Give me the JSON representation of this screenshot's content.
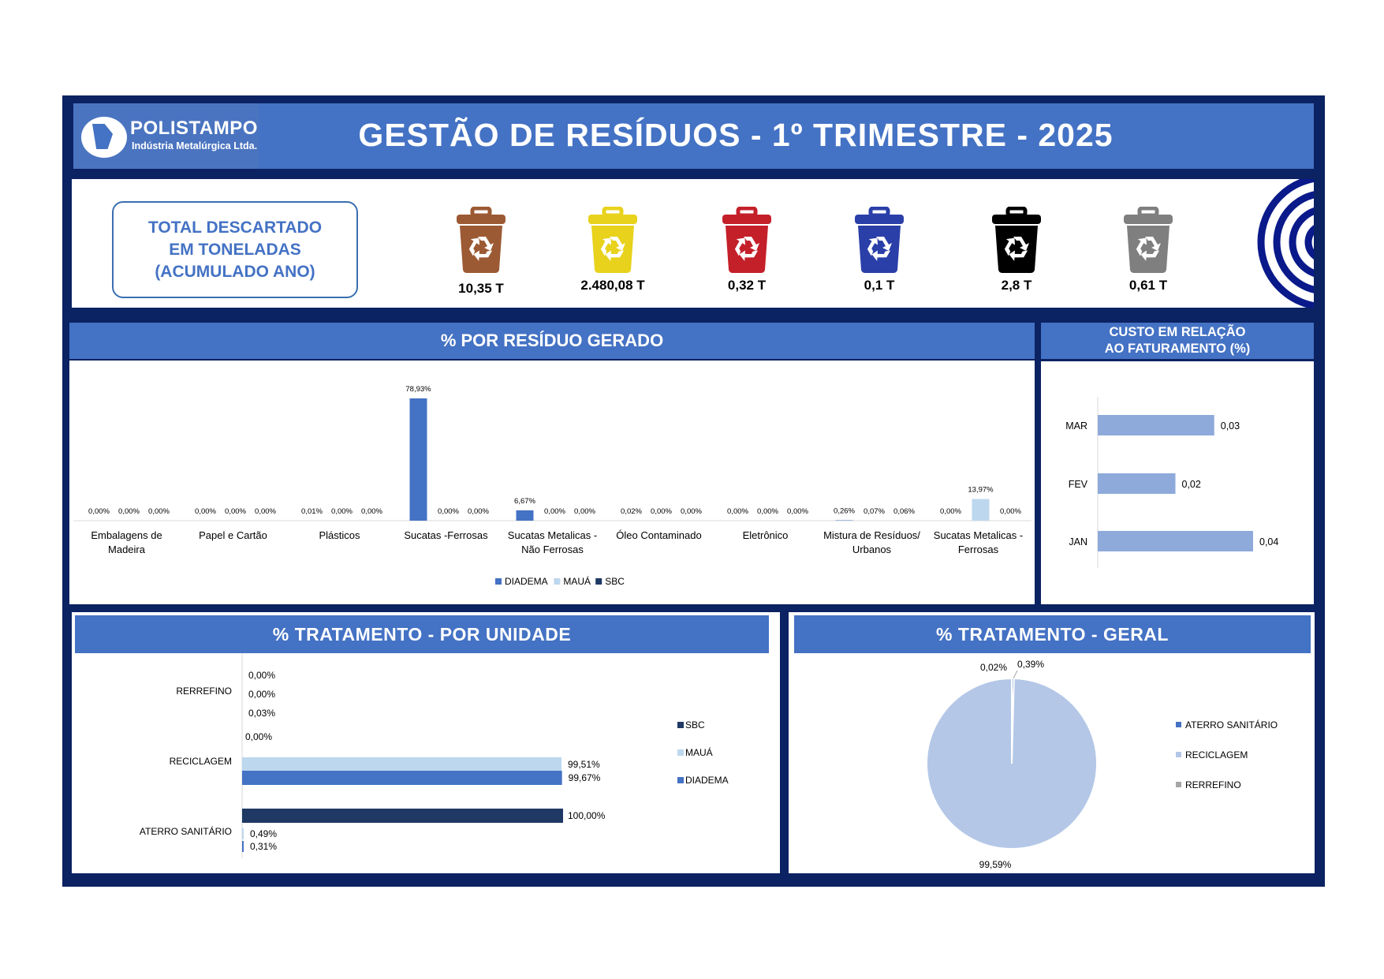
{
  "header": {
    "logo_name": "POLISTAMPO",
    "logo_sub": "Indústria Metalúrgica Ltda.",
    "title": "GESTÃO DE RESÍDUOS - 1º TRIMESTRE - 2025"
  },
  "totals": {
    "label_lines": [
      "TOTAL DESCARTADO",
      "EM TONELADAS",
      "(ACUMULADO ANO)"
    ],
    "bins": [
      {
        "color": "#9c5a34",
        "value": "10,35 T",
        "icon": "recycle-bin-brown-icon"
      },
      {
        "color": "#e8d21c",
        "value": "2.480,08 T",
        "icon": "recycle-bin-yellow-icon"
      },
      {
        "color": "#c4202a",
        "value": "0,32 T",
        "icon": "recycle-bin-red-icon"
      },
      {
        "color": "#2a3fa8",
        "value": "0,1 T",
        "icon": "recycle-bin-blue-icon"
      },
      {
        "color": "#000000",
        "value": "2,8 T",
        "icon": "recycle-bin-black-icon"
      },
      {
        "color": "#7f7f7f",
        "value": "0,61 T",
        "icon": "recycle-bin-gray-icon"
      }
    ]
  },
  "residuo_title": "% POR RESÍDUO GERADO",
  "custo_title_lines": [
    "CUSTO EM RELAÇÃO",
    "AO FATURAMENTO (%)"
  ],
  "unidade_title": "% TRATAMENTO - POR UNIDADE",
  "geral_title": "% TRATAMENTO - GERAL",
  "colors": {
    "diadema": "#4472c4",
    "maua": "#bdd7ee",
    "sbc": "#1f3864",
    "hbar": "#8eaadb",
    "pie_main": "#b4c7e7"
  },
  "chart_data": [
    {
      "type": "bar",
      "title": "% POR RESÍDUO GERADO",
      "categories": [
        "Embalagens de Madeira",
        "Papel e Cartão",
        "Plásticos",
        "Sucatas -Ferrosas",
        "Sucatas Metalicas - Não Ferrosas",
        "Óleo Contaminado",
        "Eletrônico",
        "Mistura de Resíduos/ Urbanos",
        "Sucatas Metalicas - Ferrosas"
      ],
      "category_lines": [
        [
          "Embalagens de",
          "Madeira"
        ],
        [
          "Papel e Cartão"
        ],
        [
          "Plásticos"
        ],
        [
          "Sucatas -Ferrosas"
        ],
        [
          "Sucatas Metalicas -",
          "Não Ferrosas"
        ],
        [
          "Óleo Contaminado"
        ],
        [
          "Eletrônico"
        ],
        [
          "Mistura de Resíduos/",
          "Urbanos"
        ],
        [
          "Sucatas Metalicas -",
          "Ferrosas"
        ]
      ],
      "series": [
        {
          "name": "DIADEMA",
          "values": [
            0,
            0,
            0.01,
            78.93,
            6.67,
            0.02,
            0,
            0.26,
            0
          ],
          "labels": [
            "0,00%",
            "0,00%",
            "0,01%",
            "78,93%",
            "6,67%",
            "0,02%",
            "0,00%",
            "0,26%",
            "0,00%"
          ]
        },
        {
          "name": "MAUÁ",
          "values": [
            0,
            0,
            0,
            0,
            0,
            0,
            0,
            0.07,
            13.97
          ],
          "labels": [
            "0,00%",
            "0,00%",
            "0,00%",
            "0,00%",
            "0,00%",
            "0,00%",
            "0,00%",
            "0,07%",
            "13,97%"
          ]
        },
        {
          "name": "SBC",
          "values": [
            0,
            0,
            0,
            0,
            0,
            0,
            0,
            0.06,
            0
          ],
          "labels": [
            "0,00%",
            "0,00%",
            "0,00%",
            "0,00%",
            "0,00%",
            "0,00%",
            "0,00%",
            "0,06%",
            "0,00%"
          ]
        }
      ],
      "legend": "bottom"
    },
    {
      "type": "bar",
      "orientation": "horizontal",
      "title": "CUSTO EM RELAÇÃO AO FATURAMENTO (%)",
      "categories": [
        "MAR",
        "FEV",
        "JAN"
      ],
      "values": [
        0.03,
        0.02,
        0.04
      ],
      "labels": [
        "0,03",
        "0,02",
        "0,04"
      ]
    },
    {
      "type": "bar",
      "orientation": "horizontal",
      "title": "% TRATAMENTO - POR UNIDADE",
      "categories": [
        "RERREFINO",
        "RECICLAGEM",
        "ATERRO SANITÁRIO"
      ],
      "series": [
        {
          "name": "SBC",
          "values": [
            0.0,
            0.0,
            100.0
          ],
          "labels": [
            "0,00%",
            "0,00%",
            "100,00%"
          ]
        },
        {
          "name": "MAUÁ",
          "values": [
            0.0,
            99.51,
            0.49
          ],
          "labels": [
            "0,00%",
            "99,51%",
            "0,49%"
          ]
        },
        {
          "name": "DIADEMA",
          "values": [
            0.03,
            99.67,
            0.31
          ],
          "labels": [
            "0,03%",
            "99,67%",
            "0,31%"
          ]
        }
      ],
      "legend": "right"
    },
    {
      "type": "pie",
      "title": "% TRATAMENTO - GERAL",
      "labels": [
        "ATERRO SANITÁRIO",
        "RECICLAGEM",
        "RERREFINO"
      ],
      "values": [
        0.39,
        99.59,
        0.02
      ],
      "value_labels": [
        "0,39%",
        "99,59%",
        "0,02%"
      ],
      "colors": [
        "#4472c4",
        "#b4c7e7",
        "#a5a5a5"
      ],
      "legend": "right"
    }
  ]
}
